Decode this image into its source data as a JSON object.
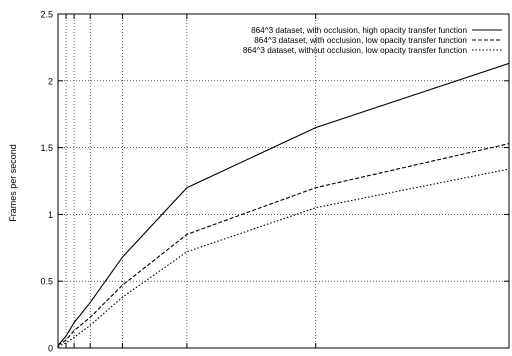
{
  "chart_data": {
    "type": "line",
    "ylabel": "Frames per second",
    "xlabel": "",
    "xlim": [
      0,
      56
    ],
    "ylim": [
      0,
      2.5
    ],
    "yticks": [
      0,
      0.5,
      1,
      1.5,
      2,
      2.5
    ],
    "ytick_labels": [
      "0",
      "0.5",
      "1",
      "1.5",
      "2",
      "2.5"
    ],
    "xgrid": [
      1,
      2,
      4,
      8,
      16,
      32
    ],
    "grid": true,
    "legend_position": "top-right",
    "series": [
      {
        "name": "864^3 dataset, with occlusion, high opacity transfer function",
        "dash": "solid",
        "x": [
          0,
          1,
          2,
          4,
          8,
          16,
          32,
          56
        ],
        "y": [
          0.02,
          0.09,
          0.19,
          0.34,
          0.68,
          1.2,
          1.65,
          2.13
        ]
      },
      {
        "name": "864^3 dataset, with occlusion, low opacity transfer function",
        "dash": "dashed",
        "x": [
          0,
          1,
          2,
          4,
          8,
          16,
          32,
          56
        ],
        "y": [
          0.02,
          0.06,
          0.13,
          0.23,
          0.47,
          0.85,
          1.2,
          1.53
        ]
      },
      {
        "name": "864^3 dataset, without occlusion, low opacity transfer function",
        "dash": "dotted",
        "x": [
          0,
          1,
          2,
          4,
          8,
          16,
          32,
          56
        ],
        "y": [
          0.01,
          0.04,
          0.08,
          0.17,
          0.38,
          0.72,
          1.05,
          1.34
        ]
      }
    ]
  }
}
